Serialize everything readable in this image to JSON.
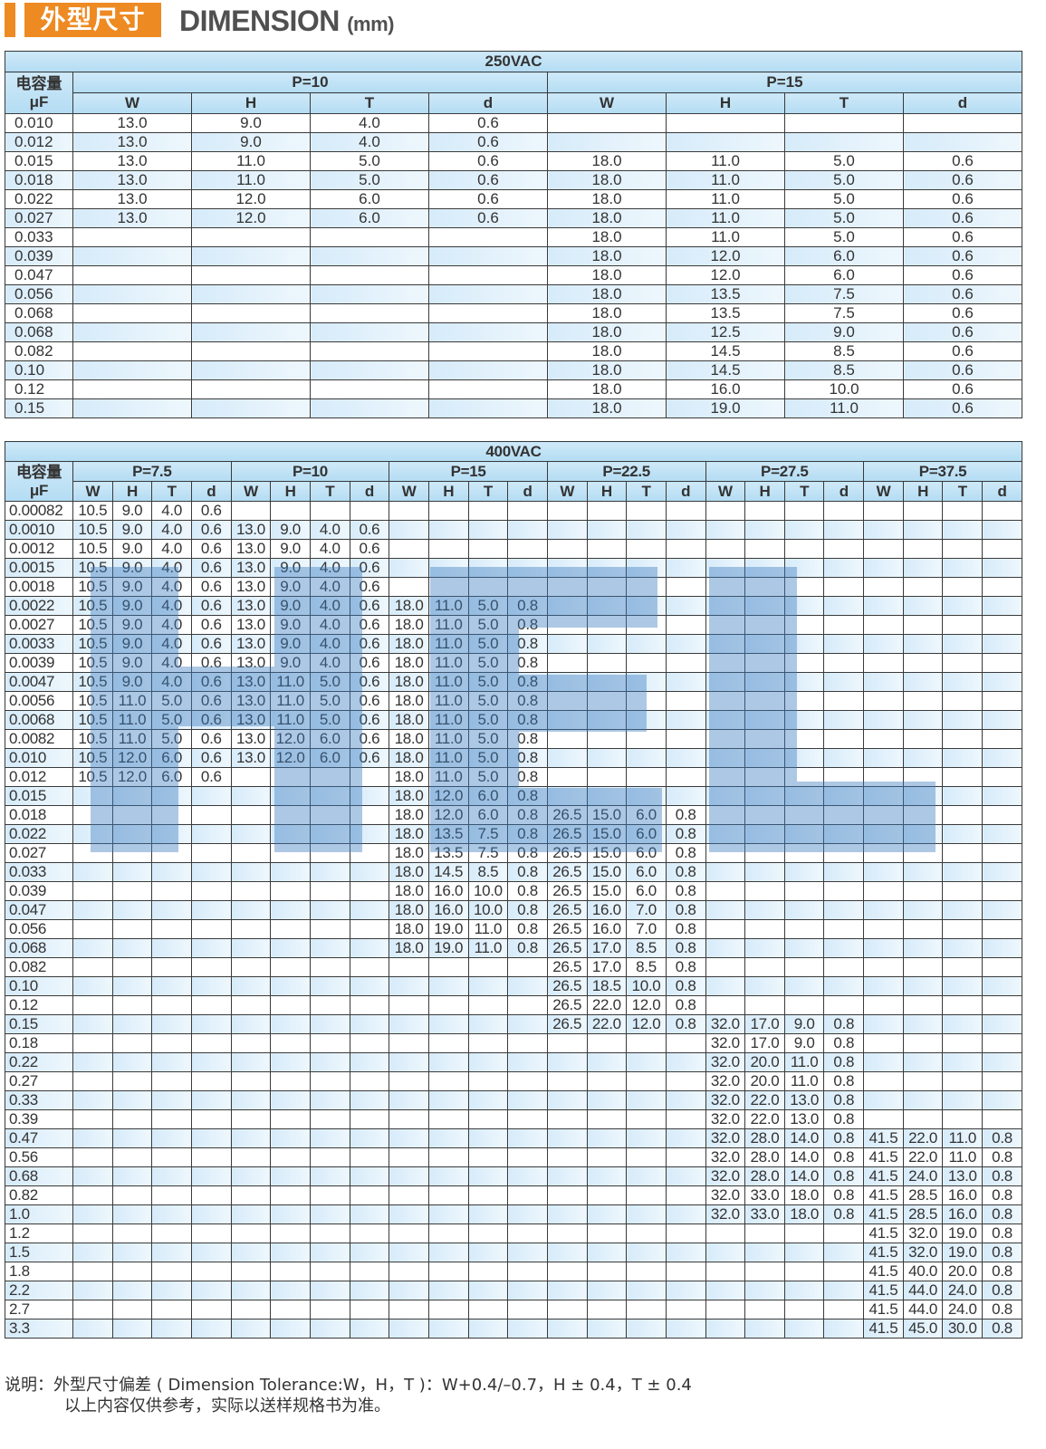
{
  "header": {
    "title_cn": "外型尺寸",
    "title_en": "DIMENSION",
    "unit": "(mm)",
    "accent_color": "#ee8a22"
  },
  "table_250": {
    "voltage": "250VAC",
    "cap_label_1": "电容量",
    "cap_label_2": "μF",
    "pitches": [
      "P=10",
      "P=15"
    ],
    "cols": [
      "W",
      "H",
      "T",
      "d"
    ],
    "rows": [
      {
        "cap": "0.010",
        "groups": [
          [
            "13.0",
            "9.0",
            "4.0",
            "0.6"
          ],
          []
        ]
      },
      {
        "cap": "0.012",
        "groups": [
          [
            "13.0",
            "9.0",
            "4.0",
            "0.6"
          ],
          []
        ]
      },
      {
        "cap": "0.015",
        "groups": [
          [
            "13.0",
            "11.0",
            "5.0",
            "0.6"
          ],
          [
            "18.0",
            "11.0",
            "5.0",
            "0.6"
          ]
        ]
      },
      {
        "cap": "0.018",
        "groups": [
          [
            "13.0",
            "11.0",
            "5.0",
            "0.6"
          ],
          [
            "18.0",
            "11.0",
            "5.0",
            "0.6"
          ]
        ]
      },
      {
        "cap": "0.022",
        "groups": [
          [
            "13.0",
            "12.0",
            "6.0",
            "0.6"
          ],
          [
            "18.0",
            "11.0",
            "5.0",
            "0.6"
          ]
        ]
      },
      {
        "cap": "0.027",
        "groups": [
          [
            "13.0",
            "12.0",
            "6.0",
            "0.6"
          ],
          [
            "18.0",
            "11.0",
            "5.0",
            "0.6"
          ]
        ]
      },
      {
        "cap": "0.033",
        "groups": [
          [],
          [
            "18.0",
            "11.0",
            "5.0",
            "0.6"
          ]
        ]
      },
      {
        "cap": "0.039",
        "groups": [
          [],
          [
            "18.0",
            "12.0",
            "6.0",
            "0.6"
          ]
        ]
      },
      {
        "cap": "0.047",
        "groups": [
          [],
          [
            "18.0",
            "12.0",
            "6.0",
            "0.6"
          ]
        ]
      },
      {
        "cap": "0.056",
        "groups": [
          [],
          [
            "18.0",
            "13.5",
            "7.5",
            "0.6"
          ]
        ]
      },
      {
        "cap": "0.068",
        "groups": [
          [],
          [
            "18.0",
            "13.5",
            "7.5",
            "0.6"
          ]
        ]
      },
      {
        "cap": "0.068",
        "groups": [
          [],
          [
            "18.0",
            "12.5",
            "9.0",
            "0.6"
          ]
        ]
      },
      {
        "cap": "0.082",
        "groups": [
          [],
          [
            "18.0",
            "14.5",
            "8.5",
            "0.6"
          ]
        ]
      },
      {
        "cap": "0.10",
        "groups": [
          [],
          [
            "18.0",
            "14.5",
            "8.5",
            "0.6"
          ]
        ]
      },
      {
        "cap": "0.12",
        "groups": [
          [],
          [
            "18.0",
            "16.0",
            "10.0",
            "0.6"
          ]
        ]
      },
      {
        "cap": "0.15",
        "groups": [
          [],
          [
            "18.0",
            "19.0",
            "11.0",
            "0.6"
          ]
        ]
      }
    ]
  },
  "table_400": {
    "voltage": "400VAC",
    "cap_label_1": "电容量",
    "cap_label_2": "μF",
    "pitches": [
      "P=7.5",
      "P=10",
      "P=15",
      "P=22.5",
      "P=27.5",
      "P=37.5"
    ],
    "cols": [
      "W",
      "H",
      "T",
      "d"
    ],
    "rows": [
      {
        "cap": "0.00082",
        "groups": [
          [
            "10.5",
            "9.0",
            "4.0",
            "0.6"
          ],
          [],
          [],
          [],
          [],
          []
        ]
      },
      {
        "cap": "0.0010",
        "groups": [
          [
            "10.5",
            "9.0",
            "4.0",
            "0.6"
          ],
          [
            "13.0",
            "9.0",
            "4.0",
            "0.6"
          ],
          [],
          [],
          [],
          []
        ]
      },
      {
        "cap": "0.0012",
        "groups": [
          [
            "10.5",
            "9.0",
            "4.0",
            "0.6"
          ],
          [
            "13.0",
            "9.0",
            "4.0",
            "0.6"
          ],
          [],
          [],
          [],
          []
        ]
      },
      {
        "cap": "0.0015",
        "groups": [
          [
            "10.5",
            "9.0",
            "4.0",
            "0.6"
          ],
          [
            "13.0",
            "9.0",
            "4.0",
            "0.6"
          ],
          [],
          [],
          [],
          []
        ]
      },
      {
        "cap": "0.0018",
        "groups": [
          [
            "10.5",
            "9.0",
            "4.0",
            "0.6"
          ],
          [
            "13.0",
            "9.0",
            "4.0",
            "0.6"
          ],
          [],
          [],
          [],
          []
        ]
      },
      {
        "cap": "0.0022",
        "groups": [
          [
            "10.5",
            "9.0",
            "4.0",
            "0.6"
          ],
          [
            "13.0",
            "9.0",
            "4.0",
            "0.6"
          ],
          [
            "18.0",
            "11.0",
            "5.0",
            "0.8"
          ],
          [],
          [],
          []
        ]
      },
      {
        "cap": "0.0027",
        "groups": [
          [
            "10.5",
            "9.0",
            "4.0",
            "0.6"
          ],
          [
            "13.0",
            "9.0",
            "4.0",
            "0.6"
          ],
          [
            "18.0",
            "11.0",
            "5.0",
            "0.8"
          ],
          [],
          [],
          []
        ]
      },
      {
        "cap": "0.0033",
        "groups": [
          [
            "10.5",
            "9.0",
            "4.0",
            "0.6"
          ],
          [
            "13.0",
            "9.0",
            "4.0",
            "0.6"
          ],
          [
            "18.0",
            "11.0",
            "5.0",
            "0.8"
          ],
          [],
          [],
          []
        ]
      },
      {
        "cap": "0.0039",
        "groups": [
          [
            "10.5",
            "9.0",
            "4.0",
            "0.6"
          ],
          [
            "13.0",
            "9.0",
            "4.0",
            "0.6"
          ],
          [
            "18.0",
            "11.0",
            "5.0",
            "0.8"
          ],
          [],
          [],
          []
        ]
      },
      {
        "cap": "0.0047",
        "groups": [
          [
            "10.5",
            "9.0",
            "4.0",
            "0.6"
          ],
          [
            "13.0",
            "11.0",
            "5.0",
            "0.6"
          ],
          [
            "18.0",
            "11.0",
            "5.0",
            "0.8"
          ],
          [],
          [],
          []
        ]
      },
      {
        "cap": "0.0056",
        "groups": [
          [
            "10.5",
            "11.0",
            "5.0",
            "0.6"
          ],
          [
            "13.0",
            "11.0",
            "5.0",
            "0.6"
          ],
          [
            "18.0",
            "11.0",
            "5.0",
            "0.8"
          ],
          [],
          [],
          []
        ]
      },
      {
        "cap": "0.0068",
        "groups": [
          [
            "10.5",
            "11.0",
            "5.0",
            "0.6"
          ],
          [
            "13.0",
            "11.0",
            "5.0",
            "0.6"
          ],
          [
            "18.0",
            "11.0",
            "5.0",
            "0.8"
          ],
          [],
          [],
          []
        ]
      },
      {
        "cap": "0.0082",
        "groups": [
          [
            "10.5",
            "11.0",
            "5.0",
            "0.6"
          ],
          [
            "13.0",
            "12.0",
            "6.0",
            "0.6"
          ],
          [
            "18.0",
            "11.0",
            "5.0",
            "0.8"
          ],
          [],
          [],
          []
        ]
      },
      {
        "cap": "0.010",
        "groups": [
          [
            "10.5",
            "12.0",
            "6.0",
            "0.6"
          ],
          [
            "13.0",
            "12.0",
            "6.0",
            "0.6"
          ],
          [
            "18.0",
            "11.0",
            "5.0",
            "0.8"
          ],
          [],
          [],
          []
        ]
      },
      {
        "cap": "0.012",
        "groups": [
          [
            "10.5",
            "12.0",
            "6.0",
            "0.6"
          ],
          [],
          [
            "18.0",
            "11.0",
            "5.0",
            "0.8"
          ],
          [],
          [],
          []
        ]
      },
      {
        "cap": "0.015",
        "groups": [
          [],
          [],
          [
            "18.0",
            "12.0",
            "6.0",
            "0.8"
          ],
          [],
          [],
          []
        ]
      },
      {
        "cap": "0.018",
        "groups": [
          [],
          [],
          [
            "18.0",
            "12.0",
            "6.0",
            "0.8"
          ],
          [
            "26.5",
            "15.0",
            "6.0",
            "0.8"
          ],
          [],
          []
        ]
      },
      {
        "cap": "0.022",
        "groups": [
          [],
          [],
          [
            "18.0",
            "13.5",
            "7.5",
            "0.8"
          ],
          [
            "26.5",
            "15.0",
            "6.0",
            "0.8"
          ],
          [],
          []
        ]
      },
      {
        "cap": "0.027",
        "groups": [
          [],
          [],
          [
            "18.0",
            "13.5",
            "7.5",
            "0.8"
          ],
          [
            "26.5",
            "15.0",
            "6.0",
            "0.8"
          ],
          [],
          []
        ]
      },
      {
        "cap": "0.033",
        "groups": [
          [],
          [],
          [
            "18.0",
            "14.5",
            "8.5",
            "0.8"
          ],
          [
            "26.5",
            "15.0",
            "6.0",
            "0.8"
          ],
          [],
          []
        ]
      },
      {
        "cap": "0.039",
        "groups": [
          [],
          [],
          [
            "18.0",
            "16.0",
            "10.0",
            "0.8"
          ],
          [
            "26.5",
            "15.0",
            "6.0",
            "0.8"
          ],
          [],
          []
        ]
      },
      {
        "cap": "0.047",
        "groups": [
          [],
          [],
          [
            "18.0",
            "16.0",
            "10.0",
            "0.8"
          ],
          [
            "26.5",
            "16.0",
            "7.0",
            "0.8"
          ],
          [],
          []
        ]
      },
      {
        "cap": "0.056",
        "groups": [
          [],
          [],
          [
            "18.0",
            "19.0",
            "11.0",
            "0.8"
          ],
          [
            "26.5",
            "16.0",
            "7.0",
            "0.8"
          ],
          [],
          []
        ]
      },
      {
        "cap": "0.068",
        "groups": [
          [],
          [],
          [
            "18.0",
            "19.0",
            "11.0",
            "0.8"
          ],
          [
            "26.5",
            "17.0",
            "8.5",
            "0.8"
          ],
          [],
          []
        ]
      },
      {
        "cap": "0.082",
        "groups": [
          [],
          [],
          [],
          [
            "26.5",
            "17.0",
            "8.5",
            "0.8"
          ],
          [],
          []
        ]
      },
      {
        "cap": "0.10",
        "groups": [
          [],
          [],
          [],
          [
            "26.5",
            "18.5",
            "10.0",
            "0.8"
          ],
          [],
          []
        ]
      },
      {
        "cap": "0.12",
        "groups": [
          [],
          [],
          [],
          [
            "26.5",
            "22.0",
            "12.0",
            "0.8"
          ],
          [],
          []
        ]
      },
      {
        "cap": "0.15",
        "groups": [
          [],
          [],
          [],
          [
            "26.5",
            "22.0",
            "12.0",
            "0.8"
          ],
          [
            "32.0",
            "17.0",
            "9.0",
            "0.8"
          ],
          []
        ]
      },
      {
        "cap": "0.18",
        "groups": [
          [],
          [],
          [],
          [],
          [
            "32.0",
            "17.0",
            "9.0",
            "0.8"
          ],
          []
        ]
      },
      {
        "cap": "0.22",
        "groups": [
          [],
          [],
          [],
          [],
          [
            "32.0",
            "20.0",
            "11.0",
            "0.8"
          ],
          []
        ]
      },
      {
        "cap": "0.27",
        "groups": [
          [],
          [],
          [],
          [],
          [
            "32.0",
            "20.0",
            "11.0",
            "0.8"
          ],
          []
        ]
      },
      {
        "cap": "0.33",
        "groups": [
          [],
          [],
          [],
          [],
          [
            "32.0",
            "22.0",
            "13.0",
            "0.8"
          ],
          []
        ]
      },
      {
        "cap": "0.39",
        "groups": [
          [],
          [],
          [],
          [],
          [
            "32.0",
            "22.0",
            "13.0",
            "0.8"
          ],
          []
        ]
      },
      {
        "cap": "0.47",
        "groups": [
          [],
          [],
          [],
          [],
          [
            "32.0",
            "28.0",
            "14.0",
            "0.8"
          ],
          [
            "41.5",
            "22.0",
            "11.0",
            "0.8"
          ]
        ]
      },
      {
        "cap": "0.56",
        "groups": [
          [],
          [],
          [],
          [],
          [
            "32.0",
            "28.0",
            "14.0",
            "0.8"
          ],
          [
            "41.5",
            "22.0",
            "11.0",
            "0.8"
          ]
        ]
      },
      {
        "cap": "0.68",
        "groups": [
          [],
          [],
          [],
          [],
          [
            "32.0",
            "28.0",
            "14.0",
            "0.8"
          ],
          [
            "41.5",
            "24.0",
            "13.0",
            "0.8"
          ]
        ]
      },
      {
        "cap": "0.82",
        "groups": [
          [],
          [],
          [],
          [],
          [
            "32.0",
            "33.0",
            "18.0",
            "0.8"
          ],
          [
            "41.5",
            "28.5",
            "16.0",
            "0.8"
          ]
        ]
      },
      {
        "cap": "1.0",
        "groups": [
          [],
          [],
          [],
          [],
          [
            "32.0",
            "33.0",
            "18.0",
            "0.8"
          ],
          [
            "41.5",
            "28.5",
            "16.0",
            "0.8"
          ]
        ]
      },
      {
        "cap": "1.2",
        "groups": [
          [],
          [],
          [],
          [],
          [],
          [
            "41.5",
            "32.0",
            "19.0",
            "0.8"
          ]
        ]
      },
      {
        "cap": "1.5",
        "groups": [
          [],
          [],
          [],
          [],
          [],
          [
            "41.5",
            "32.0",
            "19.0",
            "0.8"
          ]
        ]
      },
      {
        "cap": "1.8",
        "groups": [
          [],
          [],
          [],
          [],
          [],
          [
            "41.5",
            "40.0",
            "20.0",
            "0.8"
          ]
        ]
      },
      {
        "cap": "2.2",
        "groups": [
          [],
          [],
          [],
          [],
          [],
          [
            "41.5",
            "44.0",
            "24.0",
            "0.8"
          ]
        ]
      },
      {
        "cap": "2.7",
        "groups": [
          [],
          [],
          [],
          [],
          [],
          [
            "41.5",
            "44.0",
            "24.0",
            "0.8"
          ]
        ]
      },
      {
        "cap": "3.3",
        "groups": [
          [],
          [],
          [],
          [],
          [],
          [
            "41.5",
            "45.0",
            "30.0",
            "0.8"
          ]
        ]
      }
    ]
  },
  "notes": {
    "line1": "说明：外型尺寸偏差 ( Dimension Tolerance:W，H，T )：W+0.4/–0.7，H ± 0.4，T ± 0.4",
    "line2": "以上内容仅供参考，实际以送样规格书为准。"
  }
}
